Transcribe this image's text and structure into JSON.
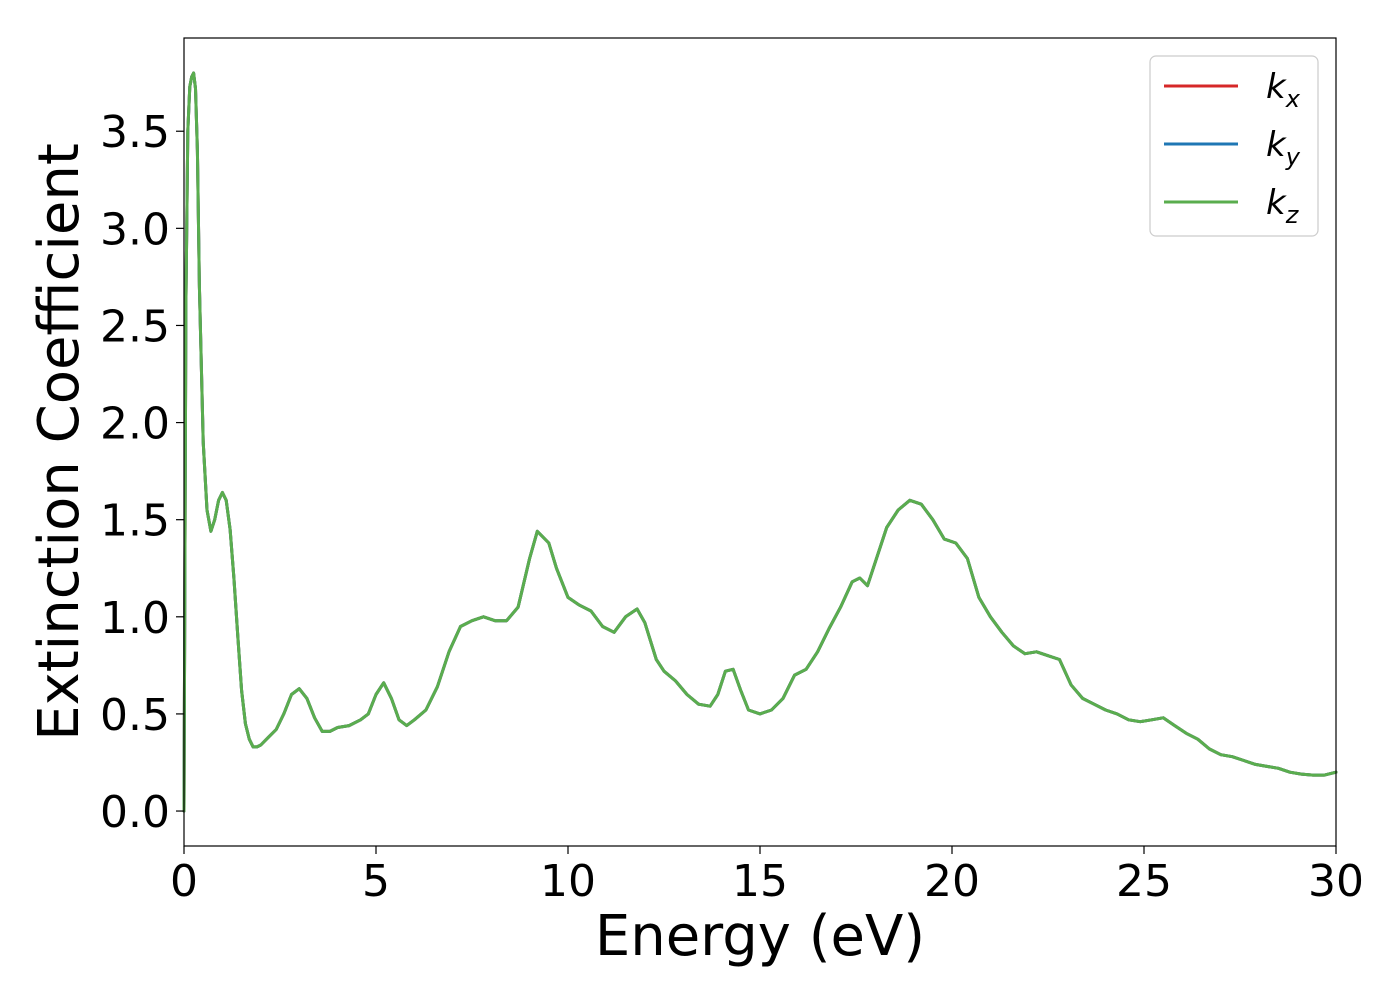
{
  "chart_data": {
    "type": "line",
    "title": "",
    "xlabel": "Energy (eV)",
    "ylabel": "Extinction Coefficient",
    "xlim": [
      0,
      30
    ],
    "ylim": [
      -0.18,
      3.98
    ],
    "xticks": [
      0,
      5,
      10,
      15,
      20,
      25,
      30
    ],
    "xtick_labels": [
      "0",
      "5",
      "10",
      "15",
      "20",
      "25",
      "30"
    ],
    "yticks": [
      0.0,
      0.5,
      1.0,
      1.5,
      2.0,
      2.5,
      3.0,
      3.5
    ],
    "ytick_labels": [
      "0.0",
      "0.5",
      "1.0",
      "1.5",
      "2.0",
      "2.5",
      "3.0",
      "3.5"
    ],
    "grid": false,
    "legend_position": "top-right",
    "x": [
      0,
      0.05,
      0.1,
      0.15,
      0.2,
      0.25,
      0.3,
      0.35,
      0.4,
      0.5,
      0.6,
      0.7,
      0.8,
      0.9,
      1.0,
      1.1,
      1.2,
      1.3,
      1.4,
      1.5,
      1.6,
      1.7,
      1.8,
      1.9,
      2.0,
      2.2,
      2.4,
      2.6,
      2.8,
      3.0,
      3.2,
      3.4,
      3.6,
      3.8,
      4.0,
      4.3,
      4.6,
      4.8,
      5.0,
      5.2,
      5.4,
      5.6,
      5.8,
      6.0,
      6.3,
      6.6,
      6.9,
      7.2,
      7.5,
      7.8,
      8.1,
      8.4,
      8.7,
      9.0,
      9.2,
      9.5,
      9.7,
      10.0,
      10.3,
      10.6,
      10.9,
      11.2,
      11.5,
      11.8,
      12.0,
      12.3,
      12.5,
      12.8,
      13.1,
      13.4,
      13.7,
      13.9,
      14.1,
      14.3,
      14.5,
      14.7,
      15.0,
      15.3,
      15.6,
      15.9,
      16.2,
      16.5,
      16.8,
      17.1,
      17.4,
      17.6,
      17.8,
      18.0,
      18.3,
      18.6,
      18.9,
      19.2,
      19.5,
      19.8,
      20.1,
      20.4,
      20.7,
      21.0,
      21.3,
      21.6,
      21.9,
      22.2,
      22.5,
      22.8,
      23.1,
      23.4,
      23.7,
      24.0,
      24.3,
      24.6,
      24.9,
      25.2,
      25.5,
      25.8,
      26.1,
      26.4,
      26.7,
      27.0,
      27.3,
      27.6,
      27.9,
      28.2,
      28.5,
      28.8,
      29.1,
      29.4,
      29.7,
      30.0
    ],
    "series": [
      {
        "name": "k_x",
        "color": "#d62728",
        "y": [
          0.0,
          2.6,
          3.5,
          3.73,
          3.78,
          3.8,
          3.72,
          3.4,
          2.7,
          1.9,
          1.55,
          1.44,
          1.5,
          1.6,
          1.64,
          1.6,
          1.45,
          1.2,
          0.9,
          0.62,
          0.45,
          0.37,
          0.33,
          0.33,
          0.34,
          0.38,
          0.42,
          0.5,
          0.6,
          0.63,
          0.58,
          0.48,
          0.41,
          0.41,
          0.43,
          0.44,
          0.47,
          0.5,
          0.6,
          0.66,
          0.58,
          0.47,
          0.44,
          0.47,
          0.52,
          0.64,
          0.82,
          0.95,
          0.98,
          1.0,
          0.98,
          0.98,
          1.05,
          1.3,
          1.44,
          1.38,
          1.25,
          1.1,
          1.06,
          1.03,
          0.95,
          0.92,
          1.0,
          1.04,
          0.97,
          0.78,
          0.72,
          0.67,
          0.6,
          0.55,
          0.54,
          0.6,
          0.72,
          0.73,
          0.62,
          0.52,
          0.5,
          0.52,
          0.58,
          0.7,
          0.73,
          0.82,
          0.94,
          1.05,
          1.18,
          1.2,
          1.16,
          1.28,
          1.46,
          1.55,
          1.6,
          1.58,
          1.5,
          1.4,
          1.38,
          1.3,
          1.1,
          1.0,
          0.92,
          0.85,
          0.81,
          0.82,
          0.8,
          0.78,
          0.65,
          0.58,
          0.55,
          0.52,
          0.5,
          0.47,
          0.46,
          0.47,
          0.48,
          0.44,
          0.4,
          0.37,
          0.32,
          0.29,
          0.28,
          0.26,
          0.24,
          0.23,
          0.22,
          0.2,
          0.19,
          0.185,
          0.185,
          0.2
        ]
      },
      {
        "name": "k_y",
        "color": "#1f77b4",
        "y": [
          0.0,
          2.6,
          3.5,
          3.73,
          3.78,
          3.8,
          3.72,
          3.4,
          2.7,
          1.9,
          1.55,
          1.44,
          1.5,
          1.6,
          1.64,
          1.6,
          1.45,
          1.2,
          0.9,
          0.62,
          0.45,
          0.37,
          0.33,
          0.33,
          0.34,
          0.38,
          0.42,
          0.5,
          0.6,
          0.63,
          0.58,
          0.48,
          0.41,
          0.41,
          0.43,
          0.44,
          0.47,
          0.5,
          0.6,
          0.66,
          0.58,
          0.47,
          0.44,
          0.47,
          0.52,
          0.64,
          0.82,
          0.95,
          0.98,
          1.0,
          0.98,
          0.98,
          1.05,
          1.3,
          1.44,
          1.38,
          1.25,
          1.1,
          1.06,
          1.03,
          0.95,
          0.92,
          1.0,
          1.04,
          0.97,
          0.78,
          0.72,
          0.67,
          0.6,
          0.55,
          0.54,
          0.6,
          0.72,
          0.73,
          0.62,
          0.52,
          0.5,
          0.52,
          0.58,
          0.7,
          0.73,
          0.82,
          0.94,
          1.05,
          1.18,
          1.2,
          1.16,
          1.28,
          1.46,
          1.55,
          1.6,
          1.58,
          1.5,
          1.4,
          1.38,
          1.3,
          1.1,
          1.0,
          0.92,
          0.85,
          0.81,
          0.82,
          0.8,
          0.78,
          0.65,
          0.58,
          0.55,
          0.52,
          0.5,
          0.47,
          0.46,
          0.47,
          0.48,
          0.44,
          0.4,
          0.37,
          0.32,
          0.29,
          0.28,
          0.26,
          0.24,
          0.23,
          0.22,
          0.2,
          0.19,
          0.185,
          0.185,
          0.2
        ]
      },
      {
        "name": "k_z",
        "color": "#5aad4e",
        "y": [
          0.0,
          2.6,
          3.5,
          3.73,
          3.78,
          3.8,
          3.72,
          3.4,
          2.7,
          1.9,
          1.55,
          1.44,
          1.5,
          1.6,
          1.64,
          1.6,
          1.45,
          1.2,
          0.9,
          0.62,
          0.45,
          0.37,
          0.33,
          0.33,
          0.34,
          0.38,
          0.42,
          0.5,
          0.6,
          0.63,
          0.58,
          0.48,
          0.41,
          0.41,
          0.43,
          0.44,
          0.47,
          0.5,
          0.6,
          0.66,
          0.58,
          0.47,
          0.44,
          0.47,
          0.52,
          0.64,
          0.82,
          0.95,
          0.98,
          1.0,
          0.98,
          0.98,
          1.05,
          1.3,
          1.44,
          1.38,
          1.25,
          1.1,
          1.06,
          1.03,
          0.95,
          0.92,
          1.0,
          1.04,
          0.97,
          0.78,
          0.72,
          0.67,
          0.6,
          0.55,
          0.54,
          0.6,
          0.72,
          0.73,
          0.62,
          0.52,
          0.5,
          0.52,
          0.58,
          0.7,
          0.73,
          0.82,
          0.94,
          1.05,
          1.18,
          1.2,
          1.16,
          1.28,
          1.46,
          1.55,
          1.6,
          1.58,
          1.5,
          1.4,
          1.38,
          1.3,
          1.1,
          1.0,
          0.92,
          0.85,
          0.81,
          0.82,
          0.8,
          0.78,
          0.65,
          0.58,
          0.55,
          0.52,
          0.5,
          0.47,
          0.46,
          0.47,
          0.48,
          0.44,
          0.4,
          0.37,
          0.32,
          0.29,
          0.28,
          0.26,
          0.24,
          0.23,
          0.22,
          0.2,
          0.19,
          0.185,
          0.185,
          0.2
        ]
      }
    ],
    "legend": [
      {
        "base": "k",
        "sub": "x",
        "color": "#d62728"
      },
      {
        "base": "k",
        "sub": "y",
        "color": "#1f77b4"
      },
      {
        "base": "k",
        "sub": "z",
        "color": "#5aad4e"
      }
    ]
  }
}
